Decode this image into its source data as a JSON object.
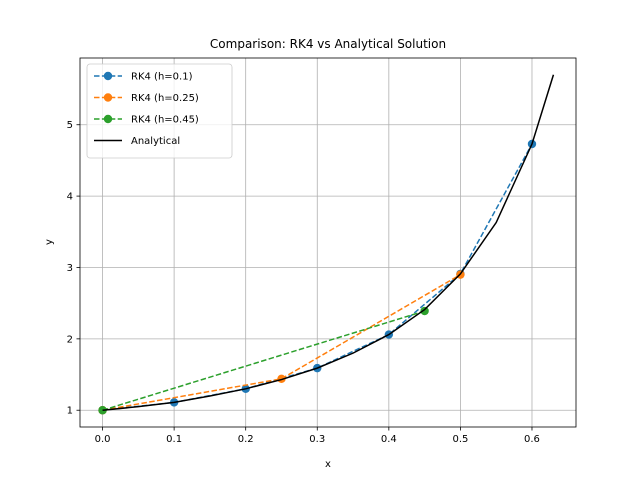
{
  "chart_data": {
    "type": "line",
    "title": "Comparison: RK4 vs Analytical Solution",
    "xlabel": "x",
    "ylabel": "y",
    "xlim": [
      -0.0315,
      0.6615
    ],
    "ylim": [
      0.765,
      5.935
    ],
    "xticks": [
      0.0,
      0.1,
      0.2,
      0.3,
      0.4,
      0.5,
      0.6
    ],
    "xtick_labels": [
      "0.0",
      "0.1",
      "0.2",
      "0.3",
      "0.4",
      "0.5",
      "0.6"
    ],
    "yticks": [
      1,
      2,
      3,
      4,
      5
    ],
    "ytick_labels": [
      "1",
      "2",
      "3",
      "4",
      "5"
    ],
    "grid": true,
    "legend_position": "top-left",
    "series": [
      {
        "name": "RK4 (h=0.1)",
        "color": "#1f77b4",
        "style": "dashed",
        "marker": "circle",
        "x": [
          0.0,
          0.1,
          0.2,
          0.3,
          0.4,
          0.5,
          0.6
        ],
        "y": [
          1.0,
          1.11,
          1.3,
          1.59,
          2.06,
          2.91,
          4.73
        ]
      },
      {
        "name": "RK4 (h=0.25)",
        "color": "#ff7f0e",
        "style": "dashed",
        "marker": "circle",
        "x": [
          0.0,
          0.25,
          0.5
        ],
        "y": [
          1.0,
          1.44,
          2.9
        ]
      },
      {
        "name": "RK4 (h=0.45)",
        "color": "#2ca02c",
        "style": "dashed",
        "marker": "circle",
        "x": [
          0.0,
          0.45
        ],
        "y": [
          1.0,
          2.39
        ]
      },
      {
        "name": "Analytical",
        "color": "#000000",
        "style": "solid",
        "marker": "none",
        "x": [
          0.0,
          0.05,
          0.1,
          0.15,
          0.2,
          0.25,
          0.3,
          0.35,
          0.4,
          0.45,
          0.5,
          0.55,
          0.6,
          0.63
        ],
        "y": [
          1.0,
          1.05,
          1.11,
          1.2,
          1.3,
          1.43,
          1.59,
          1.8,
          2.06,
          2.41,
          2.91,
          3.63,
          4.73,
          5.7
        ]
      }
    ]
  }
}
